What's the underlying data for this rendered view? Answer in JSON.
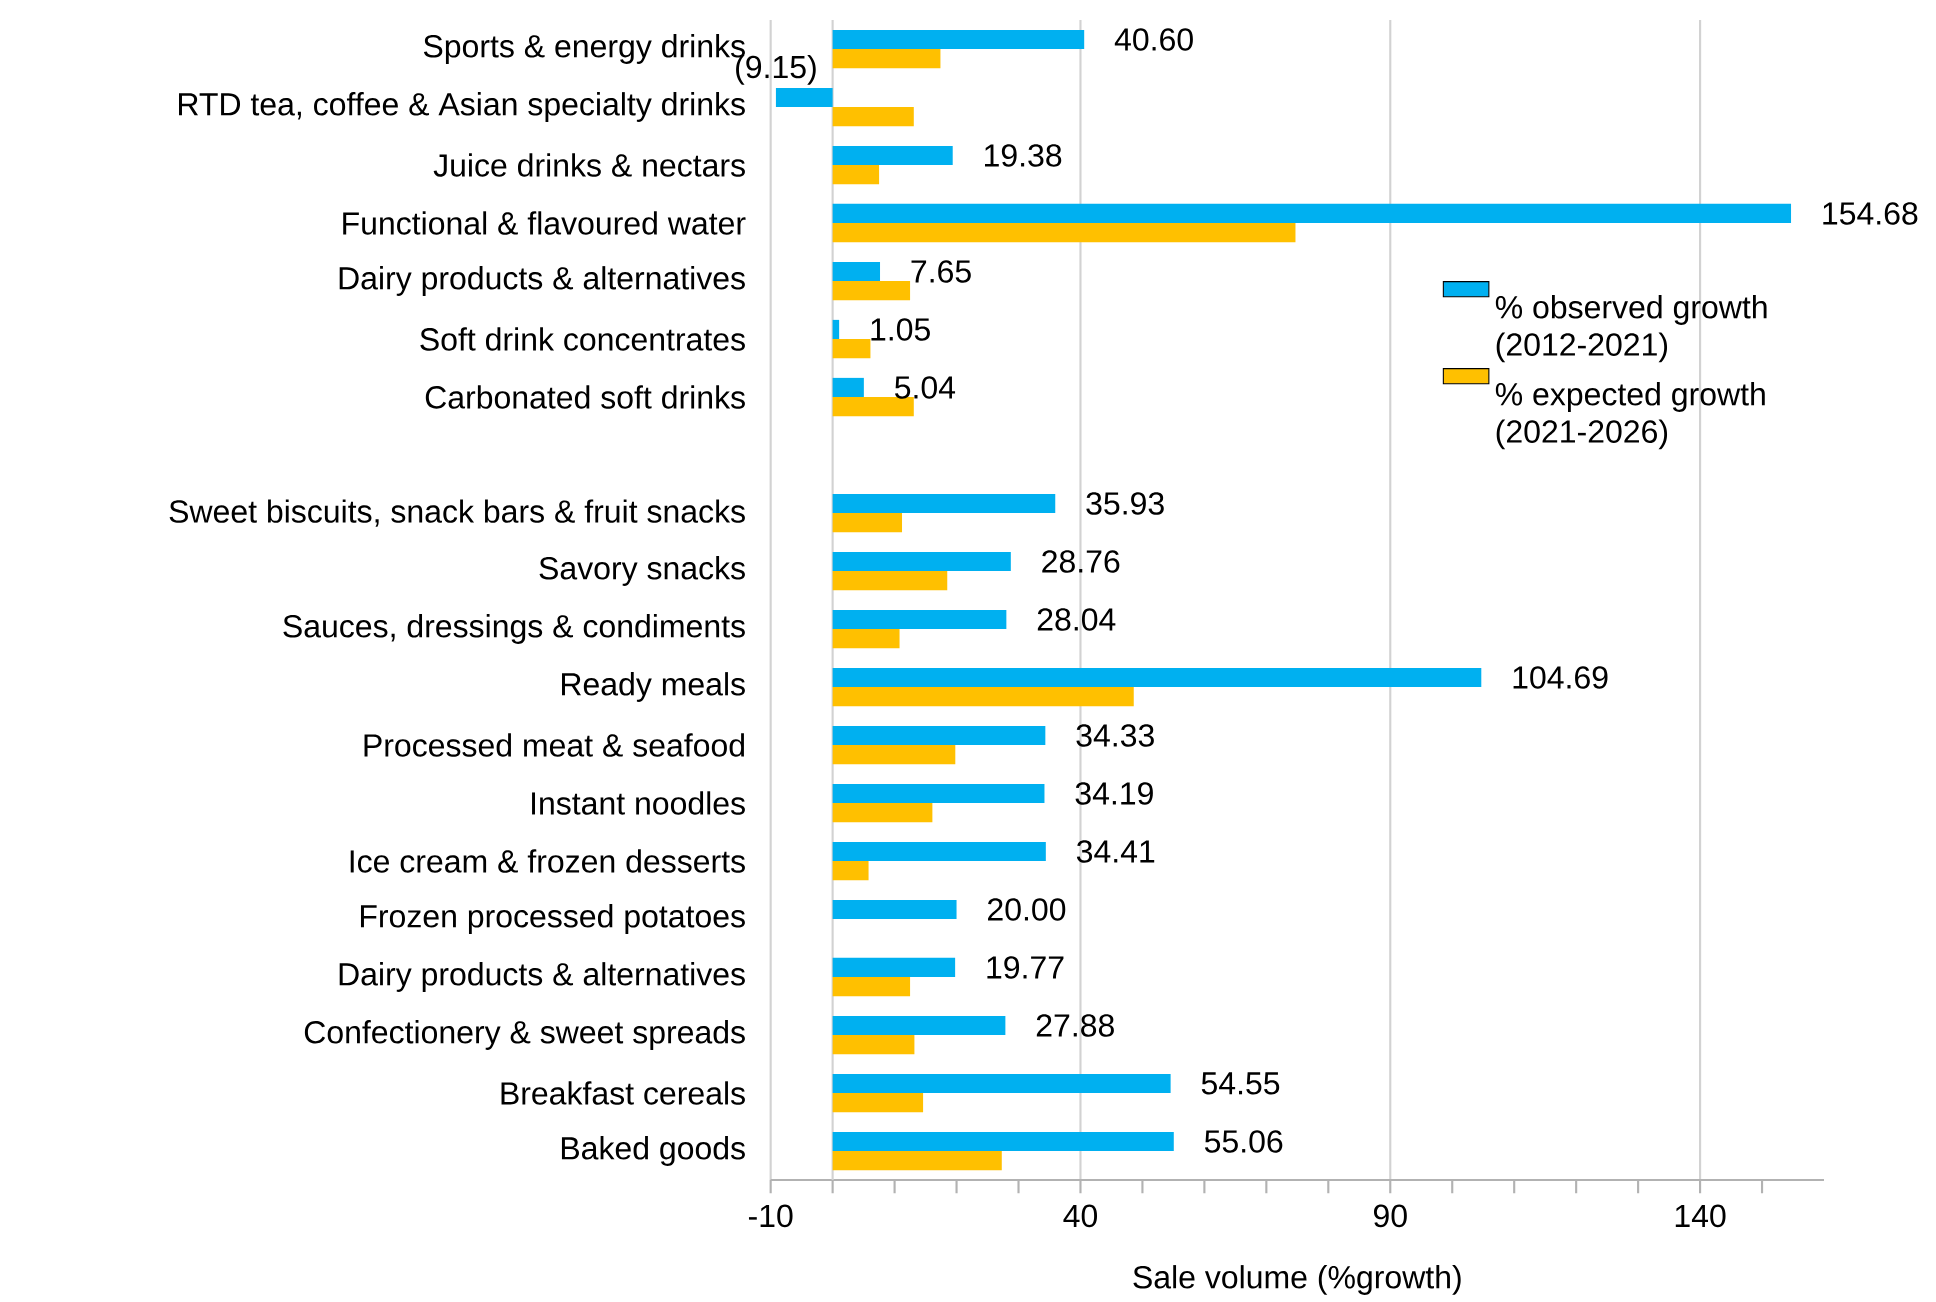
{
  "chart_data": {
    "type": "bar",
    "orientation": "horizontal",
    "xlabel": "Sale volume (%growth)",
    "categories": [
      "Sports & energy drinks",
      "RTD tea, coffee & Asian specialty drinks",
      "Juice drinks & nectars",
      "Functional & flavoured water",
      "Dairy products & alternatives",
      "Soft drink concentrates",
      "Carbonated soft drinks",
      null,
      "Sweet biscuits, snack bars & fruit snacks",
      "Savory snacks",
      "Sauces, dressings & condiments",
      "Ready meals",
      "Processed meat & seafood",
      "Instant noodles",
      "Ice cream & frozen desserts",
      "Frozen processed potatoes",
      "Dairy products & alternatives",
      "Confectionery & sweet spreads",
      "Breakfast cereals",
      "Baked goods"
    ],
    "series": [
      {
        "name": "% observed growth (2012-2021)",
        "color": "#00b0f0",
        "values": [
          40.6,
          -9.15,
          19.38,
          154.68,
          7.65,
          1.05,
          5.04,
          null,
          35.93,
          28.76,
          28.04,
          104.69,
          34.33,
          34.19,
          34.41,
          20.0,
          19.77,
          27.88,
          54.55,
          55.06
        ],
        "value_labels": [
          "40.60",
          "(9.15)",
          "19.38",
          "154.68",
          "7.65",
          "1.05",
          "5.04",
          null,
          "35.93",
          "28.76",
          "28.04",
          "104.69",
          "34.33",
          "34.19",
          "34.41",
          "20.00",
          "19.77",
          "27.88",
          "54.55",
          "55.06"
        ]
      },
      {
        "name": "% expected growth (2021-2026)",
        "color": "#ffc000",
        "values": [
          17.4,
          13.1,
          7.5,
          74.7,
          12.5,
          6.1,
          13.1,
          null,
          11.2,
          18.5,
          10.8,
          48.6,
          19.8,
          16.1,
          5.8,
          null,
          12.5,
          13.2,
          14.6,
          27.3
        ]
      }
    ],
    "xlim": [
      -10,
      160
    ],
    "xticks": [
      -10,
      {
        "value": 0,
        "label": null
      },
      {
        "value": 10,
        "label": null
      },
      {
        "value": 20,
        "label": null
      },
      {
        "value": 30,
        "label": null
      },
      40,
      {
        "value": 50,
        "label": null
      },
      {
        "value": 60,
        "label": null
      },
      {
        "value": 70,
        "label": null
      },
      {
        "value": 80,
        "label": null
      },
      90,
      {
        "value": 100,
        "label": null
      },
      {
        "value": 110,
        "label": null
      },
      {
        "value": 120,
        "label": null
      },
      {
        "value": 130,
        "label": null
      },
      140,
      {
        "value": 150,
        "label": null
      }
    ],
    "grid": "x",
    "legend": "right"
  }
}
